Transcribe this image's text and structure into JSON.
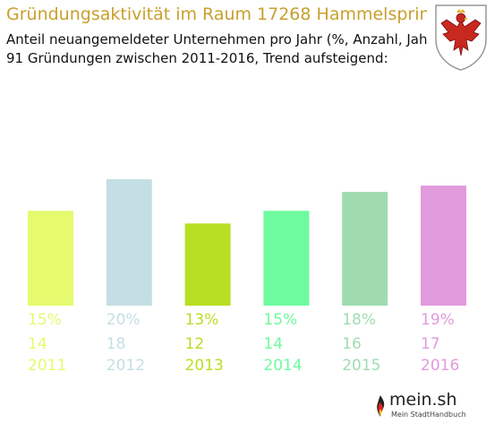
{
  "header": {
    "title": "Gründungsaktivität im Raum 17268 Hammelspring",
    "subtitle1": "Anteil neuangemeldeter Unternehmen pro Jahr (%, Anzahl, Jahr)",
    "subtitle2": "91 Gründungen zwischen 2011-2016, Trend aufsteigend:"
  },
  "crest": {
    "icon": "brandenburg-eagle-crest-icon"
  },
  "logo": {
    "main": "mein.sh",
    "sub": "Mein StadtHandbuch"
  },
  "chart_data": {
    "type": "bar",
    "categories": [
      "2011",
      "2012",
      "2013",
      "2014",
      "2015",
      "2016"
    ],
    "values": [
      15,
      20,
      13,
      15,
      18,
      19
    ],
    "counts": [
      14,
      18,
      12,
      14,
      16,
      17
    ],
    "percent_labels": [
      "15%",
      "20%",
      "13%",
      "15%",
      "18%",
      "19%"
    ],
    "colors": [
      "#e6fa6e",
      "#c4dfe3",
      "#b7df23",
      "#6efa9e",
      "#a0dbb0",
      "#e19adc"
    ],
    "ylim": [
      0,
      20
    ],
    "grid": false
  }
}
